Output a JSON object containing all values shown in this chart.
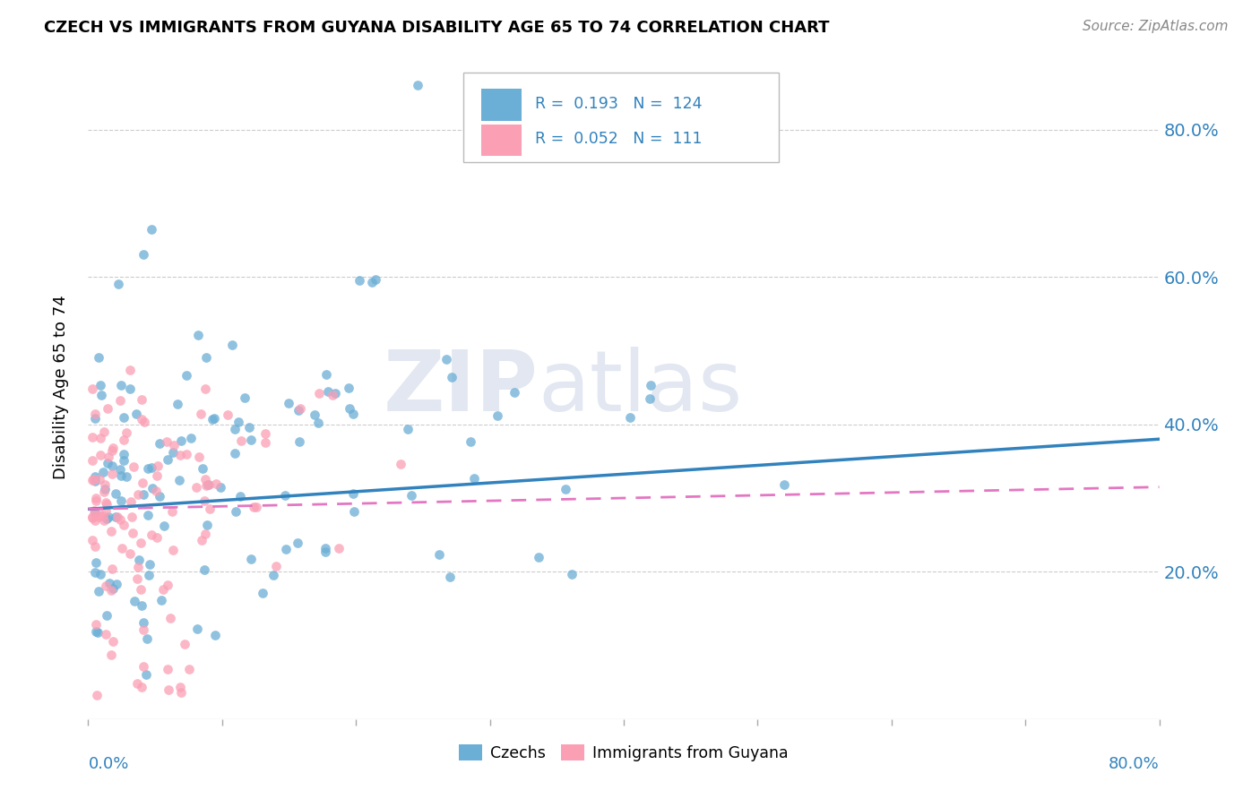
{
  "title": "CZECH VS IMMIGRANTS FROM GUYANA DISABILITY AGE 65 TO 74 CORRELATION CHART",
  "source": "Source: ZipAtlas.com",
  "ylabel": "Disability Age 65 to 74",
  "xmin": 0.0,
  "xmax": 0.8,
  "ymin": 0.0,
  "ymax": 0.9,
  "yticks": [
    0.2,
    0.4,
    0.6,
    0.8
  ],
  "ytick_labels": [
    "20.0%",
    "40.0%",
    "60.0%",
    "80.0%"
  ],
  "legend_R1": "0.193",
  "legend_N1": "124",
  "legend_R2": "0.052",
  "legend_N2": "111",
  "color_czech": "#6baed6",
  "color_guyana": "#fb9fb5",
  "color_czech_line": "#3182bd",
  "color_guyana_line": "#e377c2",
  "czech_trend_x0": 0.0,
  "czech_trend_y0": 0.285,
  "czech_trend_x1": 0.8,
  "czech_trend_y1": 0.38,
  "guyana_trend_x0": 0.0,
  "guyana_trend_y0": 0.285,
  "guyana_trend_x1": 0.8,
  "guyana_trend_y1": 0.315,
  "watermark_zip": "ZIP",
  "watermark_atlas": "atlas",
  "seed_czech": 42,
  "seed_guyana": 99,
  "n_czech": 124,
  "n_guyana": 111
}
